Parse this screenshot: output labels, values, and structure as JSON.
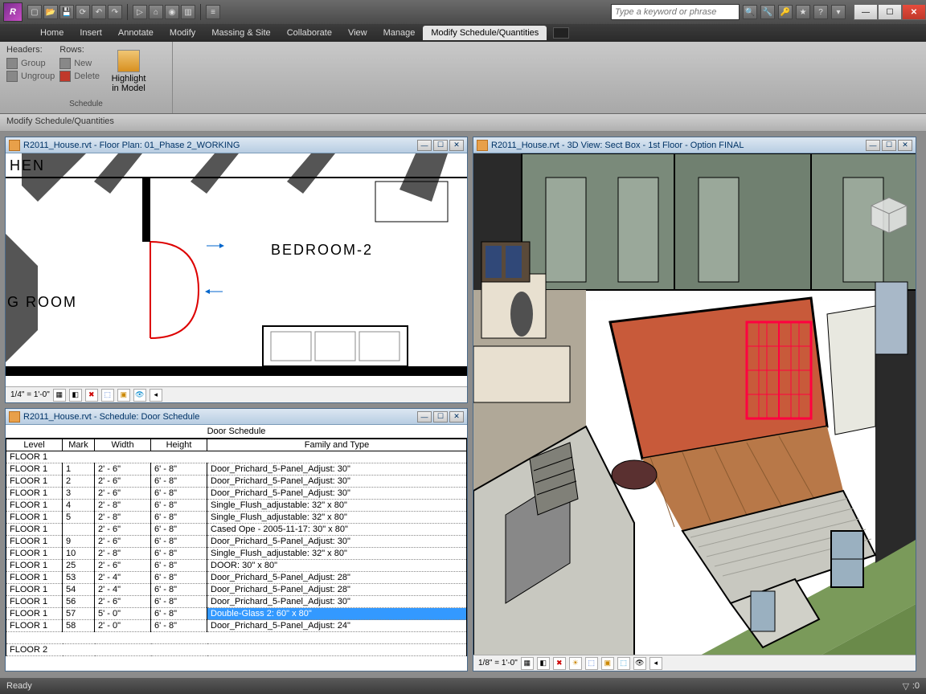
{
  "app": {
    "logo_letter": "R"
  },
  "qat": {
    "tips": [
      "new",
      "open",
      "save",
      "sync",
      "undo",
      "redo"
    ]
  },
  "search": {
    "placeholder": "Type a keyword or phrase"
  },
  "menu": {
    "items": [
      "Home",
      "Insert",
      "Annotate",
      "Modify",
      "Massing & Site",
      "Collaborate",
      "View",
      "Manage",
      "Modify Schedule/Quantities"
    ],
    "active_index": 8
  },
  "ribbon": {
    "headers_label": "Headers:",
    "group_label": "Group",
    "ungroup_label": "Ungroup",
    "rows_label": "Rows:",
    "new_label": "New",
    "delete_label": "Delete",
    "highlight_line1": "Highlight",
    "highlight_line2": "in Model",
    "panel_title": "Schedule"
  },
  "context_label": "Modify Schedule/Quantities",
  "panes": {
    "floorplan": {
      "title": "R2011_House.rvt - Floor Plan: 01_Phase 2_WORKING",
      "scale": "1/4\" = 1'-0\"",
      "room_labels": {
        "bedroom2": "BEDROOM-2",
        "hen": "HEN",
        "groom": "G ROOM"
      }
    },
    "schedule": {
      "title": "R2011_House.rvt - Schedule: Door Schedule",
      "table_title": "Door Schedule",
      "columns": [
        "Level",
        "Mark",
        "Width",
        "Height",
        "Family and Type"
      ],
      "col_widths": [
        "70px",
        "40px",
        "70px",
        "70px",
        "auto"
      ],
      "group1": "FLOOR 1",
      "group2": "FLOOR 2",
      "rows": [
        [
          "FLOOR 1",
          "1",
          "2' - 6\"",
          "6' - 8\"",
          "Door_Prichard_5-Panel_Adjust: 30\""
        ],
        [
          "FLOOR 1",
          "2",
          "2' - 6\"",
          "6' - 8\"",
          "Door_Prichard_5-Panel_Adjust: 30\""
        ],
        [
          "FLOOR 1",
          "3",
          "2' - 6\"",
          "6' - 8\"",
          "Door_Prichard_5-Panel_Adjust: 30\""
        ],
        [
          "FLOOR 1",
          "4",
          "2' - 8\"",
          "6' - 8\"",
          "Single_Flush_adjustable: 32\" x 80\""
        ],
        [
          "FLOOR 1",
          "5",
          "2' - 8\"",
          "6' - 8\"",
          "Single_Flush_adjustable: 32\" x 80\""
        ],
        [
          "FLOOR 1",
          "",
          "2' - 6\"",
          "6' - 8\"",
          "Cased Ope - 2005-11-17: 30\" x 80\""
        ],
        [
          "FLOOR 1",
          "9",
          "2' - 6\"",
          "6' - 8\"",
          "Door_Prichard_5-Panel_Adjust: 30\""
        ],
        [
          "FLOOR 1",
          "10",
          "2' - 8\"",
          "6' - 8\"",
          "Single_Flush_adjustable: 32\" x 80\""
        ],
        [
          "FLOOR 1",
          "25",
          "2' - 6\"",
          "6' - 8\"",
          "DOOR: 30\" x 80\""
        ],
        [
          "FLOOR 1",
          "53",
          "2' - 4\"",
          "6' - 8\"",
          "Door_Prichard_5-Panel_Adjust: 28\""
        ],
        [
          "FLOOR 1",
          "54",
          "2' - 4\"",
          "6' - 8\"",
          "Door_Prichard_5-Panel_Adjust: 28\""
        ],
        [
          "FLOOR 1",
          "56",
          "2' - 6\"",
          "6' - 8\"",
          "Door_Prichard_5-Panel_Adjust: 30\""
        ],
        [
          "FLOOR 1",
          "57",
          "5' - 0\"",
          "6' - 8\"",
          "Double-Glass 2: 60\" x 80\""
        ],
        [
          "FLOOR 1",
          "58",
          "2' - 0\"",
          "6' - 8\"",
          "Door_Prichard_5-Panel_Adjust: 24\""
        ]
      ],
      "selected_row": 12,
      "selected_col": 4
    },
    "view3d": {
      "title": "R2011_House.rvt - 3D View: Sect Box - 1st Floor - Option FINAL",
      "scale": "1/8\" = 1'-0\"",
      "colors": {
        "highlight_wall": "#c85a3a",
        "outer_wall": "#7a8a7a",
        "siding": "#c8c8c0",
        "floor_wood": "#b87848",
        "floor_tile": "#b0a898",
        "grass": "#6a8a4a",
        "cabinet": "#e8e0d0",
        "dark": "#2a2a2a"
      }
    }
  },
  "status": {
    "ready": "Ready",
    "filter_count": ":0"
  }
}
